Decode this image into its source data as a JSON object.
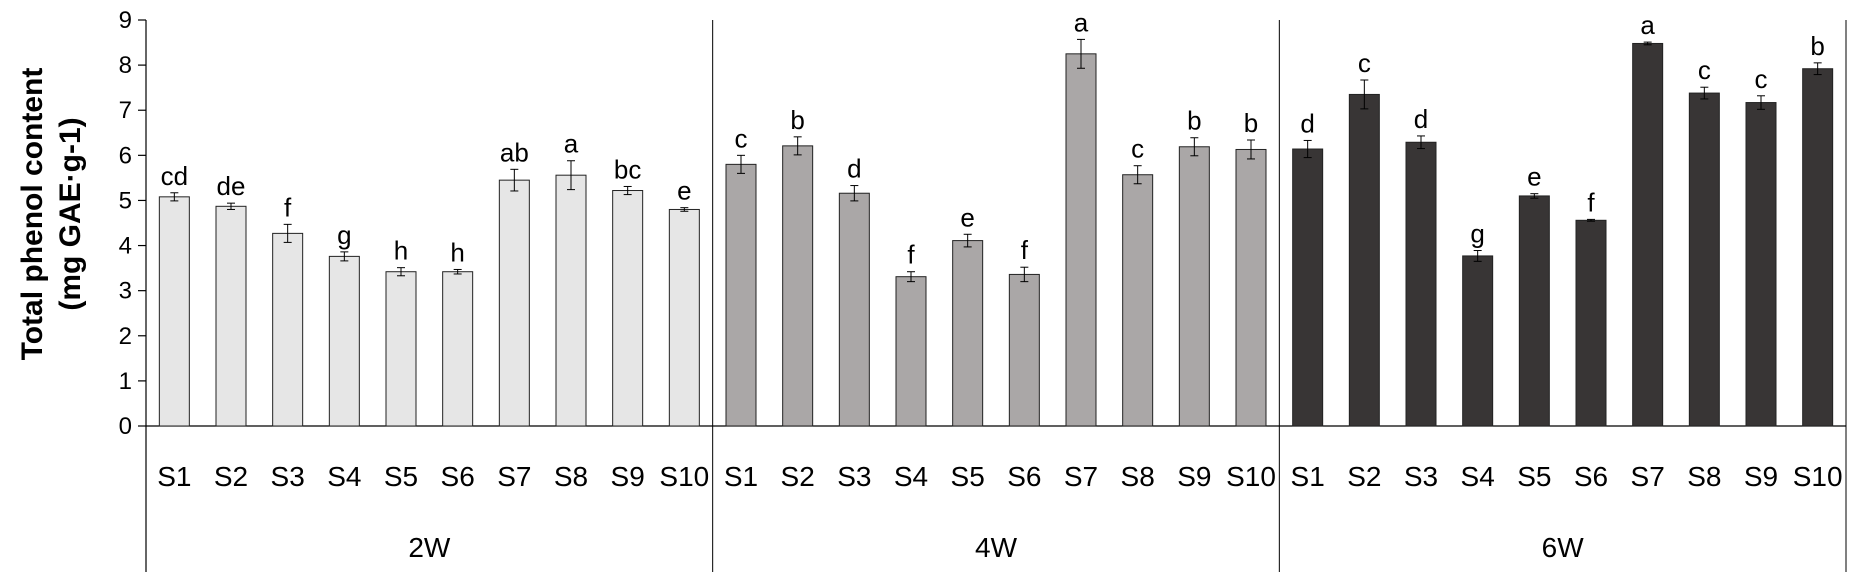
{
  "chart_data": {
    "type": "bar",
    "ylabel_line1": "Total phenol content",
    "ylabel_line2": "(mg GAE·g-1)",
    "ylim": [
      0,
      9
    ],
    "yticks": [
      "0",
      "1",
      "2",
      "3",
      "4",
      "5",
      "6",
      "7",
      "8",
      "9"
    ],
    "grid": false,
    "groups": [
      {
        "name": "2W",
        "color": "#e6e6e6",
        "categories": [
          "S1",
          "S2",
          "S3",
          "S4",
          "S5",
          "S6",
          "S7",
          "S8",
          "S9",
          "S10"
        ],
        "values": [
          5.08,
          4.87,
          4.27,
          3.76,
          3.42,
          3.42,
          5.45,
          5.56,
          5.22,
          4.8
        ],
        "errors": [
          0.09,
          0.07,
          0.2,
          0.1,
          0.09,
          0.05,
          0.24,
          0.32,
          0.09,
          0.04
        ],
        "labels": [
          "cd",
          "de",
          "f",
          "g",
          "h",
          "h",
          "ab",
          "a",
          "bc",
          "e"
        ]
      },
      {
        "name": "4W",
        "color": "#aaa7a7",
        "categories": [
          "S1",
          "S2",
          "S3",
          "S4",
          "S5",
          "S6",
          "S7",
          "S8",
          "S9",
          "S10"
        ],
        "values": [
          5.8,
          6.21,
          5.16,
          3.31,
          4.11,
          3.36,
          8.25,
          5.57,
          6.19,
          6.13
        ],
        "errors": [
          0.2,
          0.2,
          0.17,
          0.11,
          0.14,
          0.16,
          0.32,
          0.2,
          0.2,
          0.21
        ],
        "labels": [
          "c",
          "b",
          "d",
          "f",
          "e",
          "f",
          "a",
          "c",
          "b",
          "b"
        ]
      },
      {
        "name": "6W",
        "color": "#383535",
        "categories": [
          "S1",
          "S2",
          "S3",
          "S4",
          "S5",
          "S6",
          "S7",
          "S8",
          "S9",
          "S10"
        ],
        "values": [
          6.14,
          7.35,
          6.29,
          3.77,
          5.1,
          4.56,
          8.48,
          7.38,
          7.17,
          7.92
        ],
        "errors": [
          0.19,
          0.32,
          0.14,
          0.12,
          0.05,
          0.02,
          0.03,
          0.13,
          0.15,
          0.13
        ],
        "labels": [
          "d",
          "c",
          "d",
          "g",
          "e",
          "f",
          "a",
          "c",
          "c",
          "b"
        ]
      }
    ]
  }
}
